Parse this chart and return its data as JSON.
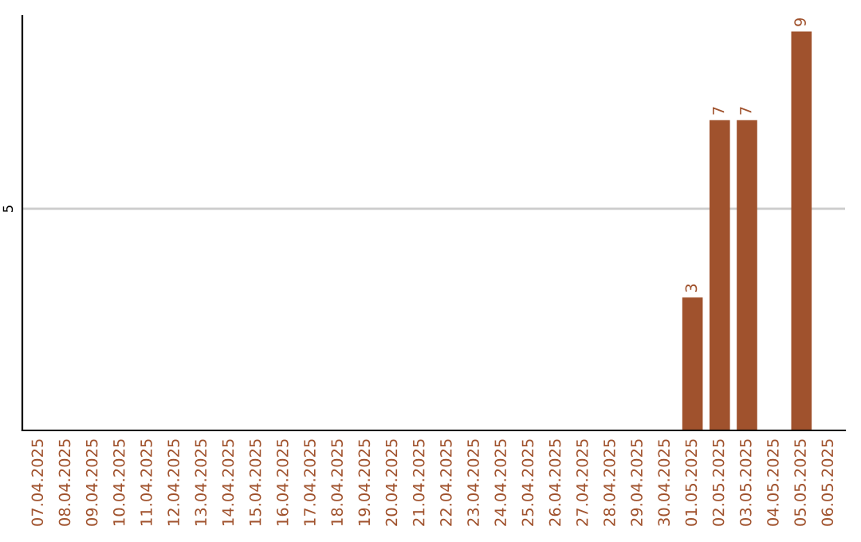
{
  "chart_data": {
    "type": "bar",
    "categories": [
      "07.04.2025",
      "08.04.2025",
      "09.04.2025",
      "10.04.2025",
      "11.04.2025",
      "12.04.2025",
      "13.04.2025",
      "14.04.2025",
      "15.04.2025",
      "16.04.2025",
      "17.04.2025",
      "18.04.2025",
      "19.04.2025",
      "20.04.2025",
      "21.04.2025",
      "22.04.2025",
      "23.04.2025",
      "24.04.2025",
      "25.04.2025",
      "26.04.2025",
      "27.04.2025",
      "28.04.2025",
      "29.04.2025",
      "30.04.2025",
      "01.05.2025",
      "02.05.2025",
      "03.05.2025",
      "04.05.2025",
      "05.05.2025",
      "06.05.2025"
    ],
    "values": [
      null,
      null,
      null,
      null,
      null,
      null,
      null,
      null,
      null,
      null,
      null,
      null,
      null,
      null,
      null,
      null,
      null,
      null,
      null,
      null,
      null,
      null,
      null,
      null,
      3,
      7,
      7,
      null,
      9,
      null
    ],
    "data_labels": true,
    "color": "#a0522d",
    "ylim": [
      0,
      9.35
    ],
    "ref_lines": [
      {
        "axis": "y",
        "value": 5,
        "label": "5",
        "color": "#cccccc"
      }
    ]
  }
}
